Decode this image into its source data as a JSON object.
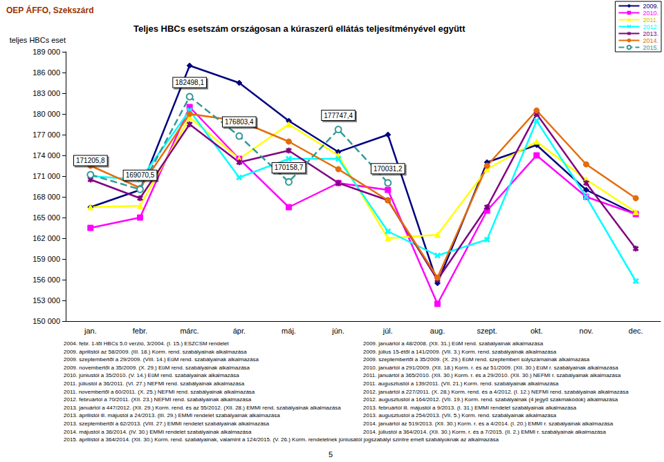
{
  "chart_data": {
    "type": "line",
    "source": "OEP ÁFFO, Szekszárd",
    "title": "Teljes HBCs esetszám országosan a kúraszerű ellátás teljesítményével együtt",
    "y_label": "teljes HBCs eset",
    "categories": [
      "jan.",
      "febr.",
      "márc.",
      "ápr.",
      "máj.",
      "jún.",
      "júl.",
      "aug.",
      "szept.",
      "okt.",
      "nov.",
      "dec."
    ],
    "ylim": [
      150000,
      189000
    ],
    "yticks": [
      {
        "value": 150000,
        "label": "150 000"
      },
      {
        "value": 153000,
        "label": "153 000"
      },
      {
        "value": 156000,
        "label": "156 000"
      },
      {
        "value": 159000,
        "label": "159 000"
      },
      {
        "value": 162000,
        "label": "162 000"
      },
      {
        "value": 165000,
        "label": "165 000"
      },
      {
        "value": 168000,
        "label": "168 000"
      },
      {
        "value": 171000,
        "label": "171 000"
      },
      {
        "value": 174000,
        "label": "174 000"
      },
      {
        "value": 177000,
        "label": "177 000"
      },
      {
        "value": 180000,
        "label": "180 000"
      },
      {
        "value": 183000,
        "label": "183 000"
      },
      {
        "value": 186000,
        "label": "186 000"
      },
      {
        "value": 189000,
        "label": "189 000"
      }
    ],
    "grid": false,
    "legend": "top-right",
    "series": [
      {
        "name": "2009.",
        "color": "#000080",
        "marker": "diamond",
        "line_style": "solid",
        "values": [
          166500,
          169000,
          187000,
          184500,
          179000,
          174500,
          177000,
          155500,
          173000,
          175500,
          169000,
          165500
        ]
      },
      {
        "name": "2010.",
        "color": "#FF00FF",
        "marker": "square",
        "line_style": "solid",
        "values": [
          163500,
          165000,
          181000,
          173500,
          166500,
          170000,
          169000,
          152500,
          166000,
          174000,
          168000,
          165500
        ]
      },
      {
        "name": "2011.",
        "color": "#FFFF00",
        "marker": "triangle",
        "line_style": "solid",
        "values": [
          166500,
          166700,
          179500,
          173500,
          178500,
          174000,
          162000,
          162500,
          172000,
          176000,
          170500,
          165800
        ]
      },
      {
        "name": "2012.",
        "color": "#00FFFF",
        "marker": "x",
        "line_style": "solid",
        "values": [
          171000,
          170500,
          180500,
          170800,
          173500,
          173500,
          163000,
          159500,
          161800,
          179000,
          168000,
          155800
        ]
      },
      {
        "name": "2013.",
        "color": "#800080",
        "marker": "star",
        "line_style": "solid",
        "values": [
          170500,
          167800,
          178500,
          173000,
          174700,
          170000,
          167500,
          156000,
          166500,
          180000,
          170000,
          160500
        ]
      },
      {
        "name": "2014.",
        "color": "#E46C0A",
        "marker": "circle",
        "line_style": "solid",
        "values": [
          172500,
          169300,
          180000,
          179000,
          176000,
          172000,
          167500,
          156300,
          172500,
          180500,
          172700,
          167800
        ]
      },
      {
        "name": "2015.",
        "color": "#339999",
        "marker": "circle-open",
        "line_style": "dashed",
        "data_labels": true,
        "values": [
          171205.8,
          169070.5,
          182498.1,
          176803.4,
          170158.7,
          177747.4,
          170031.2,
          null,
          null,
          null,
          null,
          null
        ],
        "value_labels": [
          "171205,8",
          "169070,5",
          "182498,1",
          "176803,4",
          "170158,7",
          "177747,4",
          "170031,2",
          null,
          null,
          null,
          null,
          null
        ]
      }
    ],
    "footnotes_left": [
      "2004. febr. 1-től HBCs 5.0 verzió, 3/2004. (I. 15.) ESZCSM rendelet",
      "2009. áprilistól az 58/2009. (III. 18.) Korm. rend. szabályainak alkalmazása",
      "2009. szeptembertől a 29/2009. (VIII. 14.) EüM rend. szabályainak alkalmazása",
      "2009. novembertől a 35/2009. (X. 29.) EüM rend. szabályainak alkalmazása",
      "2010. júniustól a 35/2010. (V. 14.) EüM rend. szabályainak alkalmazása",
      "2011. júliustól a 36/2011. (VI. 27.) NEFMI rend. szabályainak alkalmazása",
      "2011. novembertől a 60/2011. (X. 25.) NEFMI rend. szabályainak alkalmazása",
      "2012. februártól a 70/2011. (XII. 23.) NEFMI rend. szabályainak alkalmazása",
      "2013. januártól a 447/2012. (XII. 29.) Korm. rend. és az 55/2012. (XII. 28.) EMMI rend. szabályainak alkalmazása",
      "2013. áprilistól ill. májustól a 24/2013. (III. 29.) EMMI rendelet szabályainak alkalmazása",
      "2013. szeptembertől a 62/2013. (VIII. 27.) EMMI rendelet szabályainak alkalmazása",
      "2014. májustól a 36/2014. (IV. 30.) EMMI rendelet szabályainak alkalmazása"
    ],
    "footnotes_right": [
      "2009. januártól a 48/2008. (XII. 31.) EüM rend. szabályainak alkalmazása",
      "2009. július 15-étől a 141/2009. (VII. 3.) Korm. rend. szabályainak alkalmazása",
      "2009. szeptembertől a 35/2009. (X. 29.) EüM rend. szeptemberi súlyszámainak alkalmazása",
      "2010. januártól a 291/2009. (XII. 18.) Korm. r. és az 51/2009. (XII. 30.) EüM r. szabályainak alkalmazása",
      "2011. januártól a 365/2010. (XII. 30.) Korm. r. és a 29/2010. (XII. 30.) NEFMI r. szabályainak alkalmazása",
      "2011. augusztustól a 139/2011. (VII. 21.) Korm. rend. szabályainak alkalmazása",
      "2012. januártól a 227/2011. (X. 28.) Korm. rend. és a 4/2012. (I. 12.) NEFMI rend. szabályainak alkalmazása",
      "2012. augusztustól a 164/2012. (VII. 19.) Korm. rend. szabályainak (4 jegyű szakmakódok) alkalmazása",
      "2013. februártól ill. májustól a 9/2013. (I. 31.) EMMI rendelet szabályainak alkalmazása",
      "2013. augusztustól a 254/2013. (VII. 5.) Korm. rend. szabályainak alkalmazása",
      "2014. januártól az 519/2013. (XII. 30.) Korm. r. és a 4/2014. (I. 20.) EMMI r. szabályainak alkalmazása",
      "2014. júliustól a 364/2014. (XII. 30.) Korm. r. és a 7/2015. (II. 2.) EMMI r. szabályainak alkalmazása"
    ],
    "footnote_full": "2015. áprilistól a 364/2014. (XII. 30.) Korm. rend. szabályainak, valamint a 124/2015. (V. 26.) Korm. rendeletnek júniusától jogszabályi szintre emelt szabályoknak az alkalmazása",
    "page_number": "5"
  }
}
